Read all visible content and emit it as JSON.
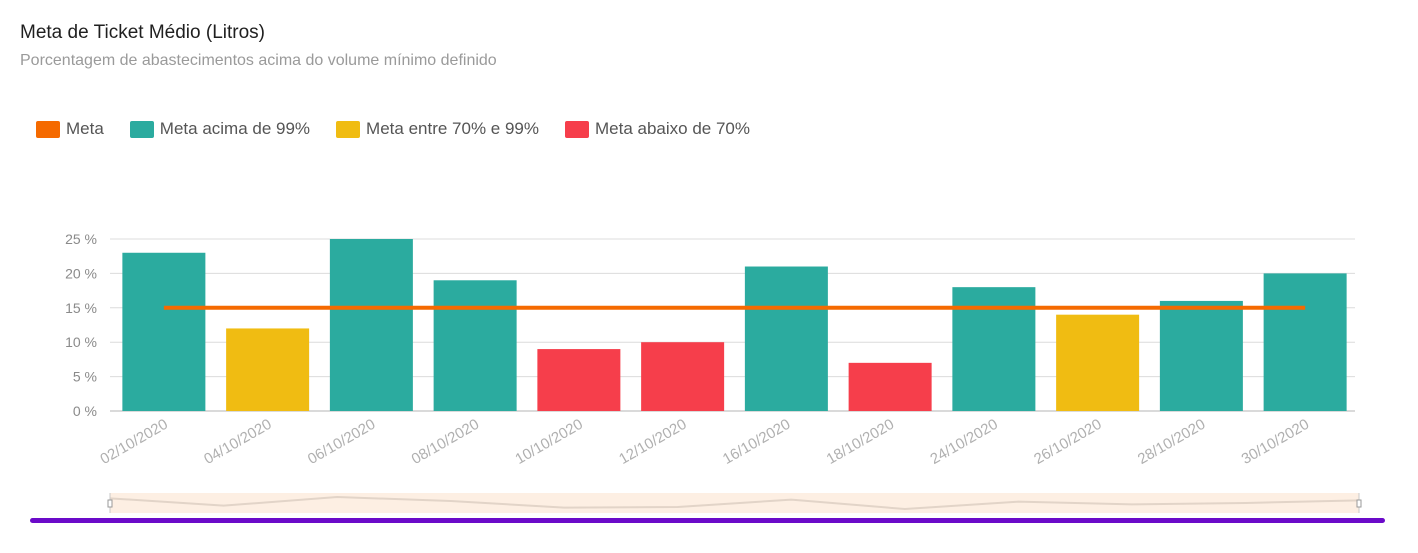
{
  "chart_data": {
    "type": "bar",
    "title": "Meta de Ticket Médio (Litros)",
    "subtitle": "Porcentagem de abastecimentos acima do volume mínimo definido",
    "categories": [
      "02/10/2020",
      "04/10/2020",
      "06/10/2020",
      "08/10/2020",
      "10/10/2020",
      "12/10/2020",
      "16/10/2020",
      "18/10/2020",
      "24/10/2020",
      "26/10/2020",
      "28/10/2020",
      "30/10/2020"
    ],
    "values": [
      23,
      12,
      25,
      19,
      9,
      10,
      21,
      7,
      18,
      14,
      16,
      20
    ],
    "target": 15,
    "ylim": [
      0,
      25
    ],
    "yticks": [
      0,
      5,
      10,
      15,
      20,
      25
    ],
    "ytick_suffix": " %",
    "legend": [
      {
        "name": "Meta",
        "color": "#F56A00"
      },
      {
        "name": "Meta acima de 99%",
        "color": "#2BAB9F"
      },
      {
        "name": "Meta entre 70% e 99%",
        "color": "#F0BC12"
      },
      {
        "name": "Meta abaixo de 70%",
        "color": "#F63E4B"
      }
    ],
    "legend_position": "top-left",
    "grid": true
  },
  "colors": {
    "meta_line": "#F56A00",
    "above": "#2BAB9F",
    "between": "#F0BC12",
    "below": "#F63E4B",
    "slider_bg": "#FDEFE3",
    "accent_bar": "#6B0AC9"
  }
}
